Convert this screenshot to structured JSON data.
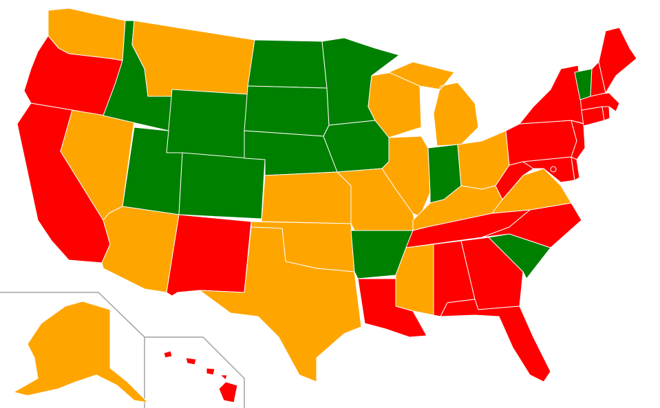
{
  "colors": {
    "red": "#ff0000",
    "orange": "#ffa500",
    "green": "#008000",
    "border": "#ffffff",
    "inset_frame": "#a0a0a0",
    "background": "#ffffff"
  },
  "states": [
    {
      "id": "WA",
      "color": "orange"
    },
    {
      "id": "OR",
      "color": "red"
    },
    {
      "id": "CA",
      "color": "red"
    },
    {
      "id": "NV",
      "color": "orange"
    },
    {
      "id": "ID",
      "color": "green"
    },
    {
      "id": "MT",
      "color": "orange"
    },
    {
      "id": "WY",
      "color": "green"
    },
    {
      "id": "UT",
      "color": "green"
    },
    {
      "id": "AZ",
      "color": "orange"
    },
    {
      "id": "CO",
      "color": "green"
    },
    {
      "id": "NM",
      "color": "red"
    },
    {
      "id": "ND",
      "color": "green"
    },
    {
      "id": "SD",
      "color": "green"
    },
    {
      "id": "NE",
      "color": "green"
    },
    {
      "id": "KS",
      "color": "orange"
    },
    {
      "id": "OK",
      "color": "orange"
    },
    {
      "id": "TX",
      "color": "orange"
    },
    {
      "id": "MN",
      "color": "green"
    },
    {
      "id": "IA",
      "color": "green"
    },
    {
      "id": "MO",
      "color": "orange"
    },
    {
      "id": "AR",
      "color": "green"
    },
    {
      "id": "LA",
      "color": "red"
    },
    {
      "id": "WI",
      "color": "orange"
    },
    {
      "id": "IL",
      "color": "orange"
    },
    {
      "id": "MI",
      "color": "orange"
    },
    {
      "id": "IN",
      "color": "green"
    },
    {
      "id": "OH",
      "color": "orange"
    },
    {
      "id": "KY",
      "color": "orange"
    },
    {
      "id": "TN",
      "color": "red"
    },
    {
      "id": "MS",
      "color": "orange"
    },
    {
      "id": "AL",
      "color": "red"
    },
    {
      "id": "GA",
      "color": "red"
    },
    {
      "id": "FL",
      "color": "red"
    },
    {
      "id": "SC",
      "color": "green"
    },
    {
      "id": "NC",
      "color": "red"
    },
    {
      "id": "VA",
      "color": "orange"
    },
    {
      "id": "WV",
      "color": "red"
    },
    {
      "id": "MD",
      "color": "red"
    },
    {
      "id": "DE",
      "color": "red"
    },
    {
      "id": "PA",
      "color": "red"
    },
    {
      "id": "NJ",
      "color": "red"
    },
    {
      "id": "NY",
      "color": "red"
    },
    {
      "id": "CT",
      "color": "red"
    },
    {
      "id": "RI",
      "color": "red"
    },
    {
      "id": "MA",
      "color": "red"
    },
    {
      "id": "VT",
      "color": "green"
    },
    {
      "id": "NH",
      "color": "red"
    },
    {
      "id": "ME",
      "color": "red"
    },
    {
      "id": "DC",
      "color": "red"
    },
    {
      "id": "AK",
      "color": "orange"
    },
    {
      "id": "HI",
      "color": "red"
    }
  ]
}
